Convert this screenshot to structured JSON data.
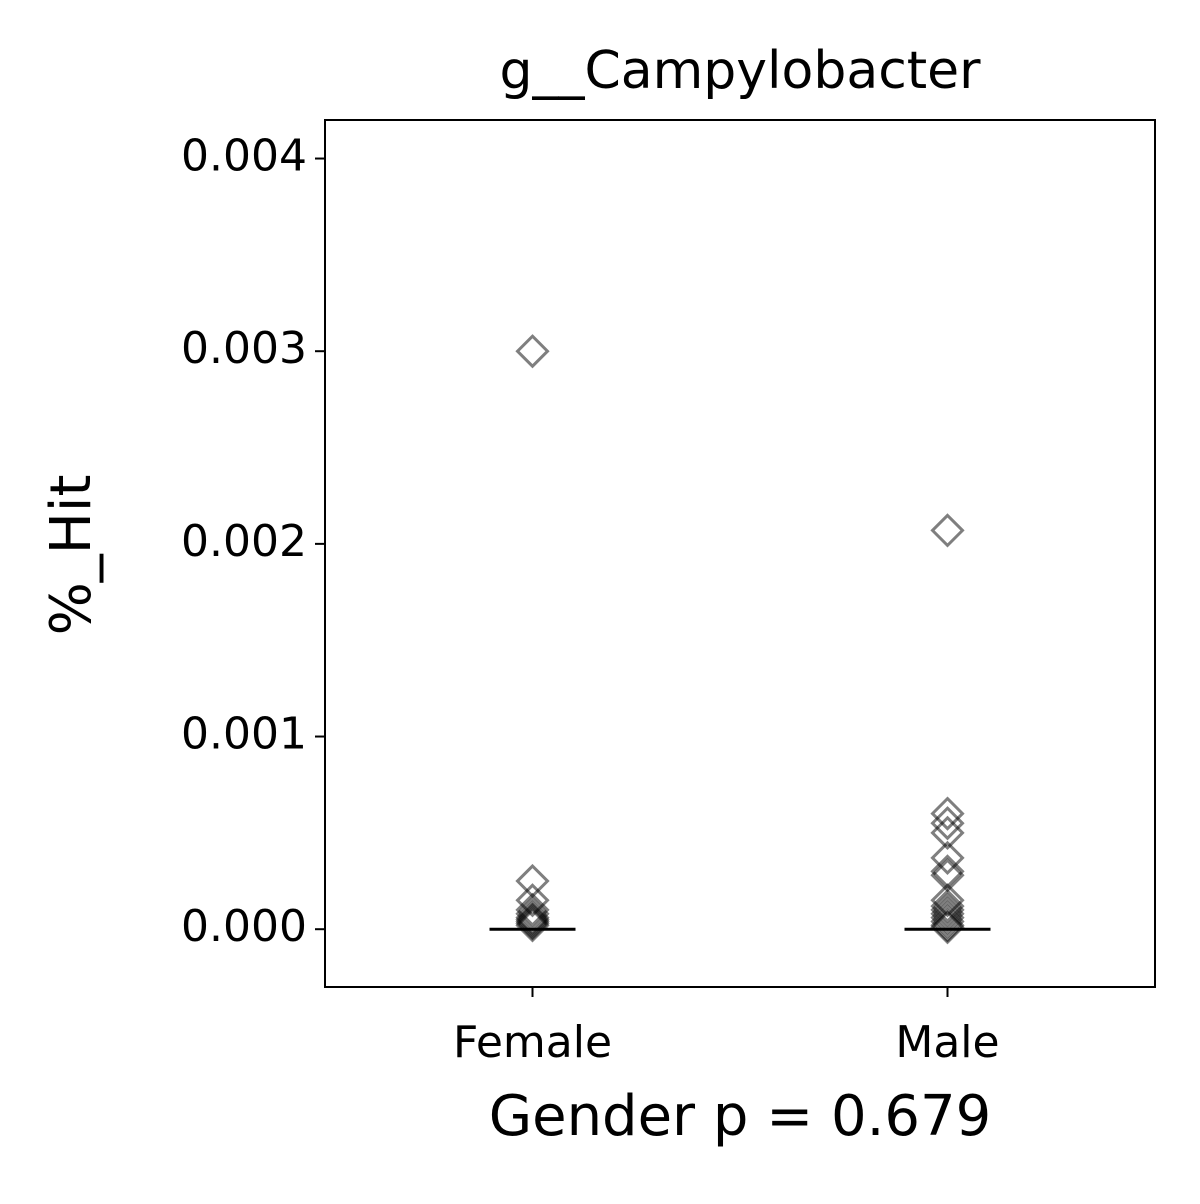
{
  "chart_data": {
    "type": "strip",
    "title": "g__Campylobacter",
    "xlabel": "Gender p = 0.679",
    "ylabel": "%_Hit",
    "groups": [
      {
        "name": "Female",
        "values": [
          0.003,
          0.00025,
          0.00015,
          0.0001,
          8e-05,
          6e-05,
          5e-05,
          4e-05,
          3e-05,
          2e-05
        ],
        "median": 0
      },
      {
        "name": "Male",
        "values": [
          0.00207,
          0.0006,
          0.00055,
          0.0005,
          0.00037,
          0.0003,
          0.00028,
          0.00015,
          0.00012,
          0.0001,
          8e-05,
          6e-05,
          4e-05,
          2e-05,
          1e-05
        ],
        "median": 0
      }
    ],
    "color": "#000000",
    "ylim": [
      -0.0003,
      0.0042
    ],
    "yticks": [
      {
        "value": 0,
        "label": "0.000"
      },
      {
        "value": 0.001,
        "label": "0.001"
      },
      {
        "value": 0.002,
        "label": "0.002"
      },
      {
        "value": 0.003,
        "label": "0.003"
      },
      {
        "value": 0.004,
        "label": "0.004"
      }
    ]
  }
}
